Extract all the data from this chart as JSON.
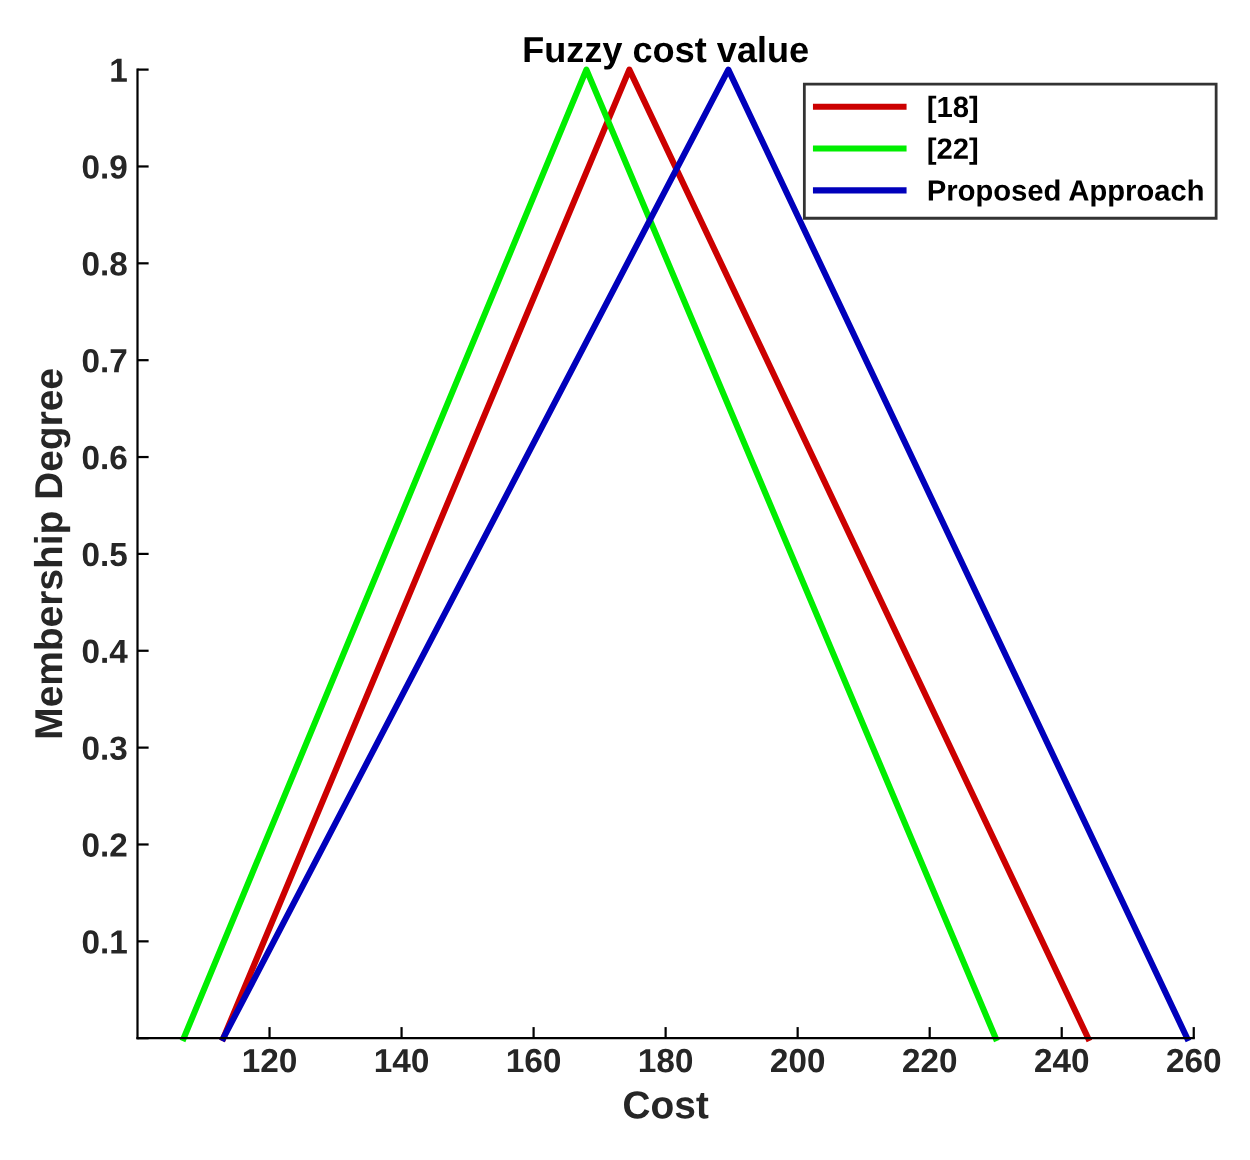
{
  "chart_data": {
    "type": "line",
    "title": "Fuzzy cost value",
    "xlabel": "Cost",
    "ylabel": "Membership Degree",
    "xlim": [
      100,
      260
    ],
    "xticks": [
      120,
      140,
      160,
      180,
      200,
      220,
      240,
      260
    ],
    "ylim": [
      0,
      1
    ],
    "yticks": [
      {
        "value": 0,
        "label": null
      },
      0.1,
      0.2,
      0.3,
      0.4,
      0.5,
      0.6,
      0.7,
      0.8,
      0.9,
      1
    ],
    "grid": false,
    "legend": "top right",
    "marker": "none",
    "line_style": "solid",
    "series": [
      {
        "name": "[18]",
        "color": "#cc0000",
        "x": [
          113,
          174.5,
          244
        ],
        "values": [
          0,
          1,
          0
        ]
      },
      {
        "name": "[22]",
        "color": "#00ee00",
        "x": [
          107,
          168,
          230
        ],
        "values": [
          0,
          1,
          0
        ]
      },
      {
        "name": "Proposed Approach",
        "color": "#0000bb",
        "x": [
          113,
          189.5,
          259
        ],
        "values": [
          0,
          1,
          0
        ]
      }
    ]
  }
}
